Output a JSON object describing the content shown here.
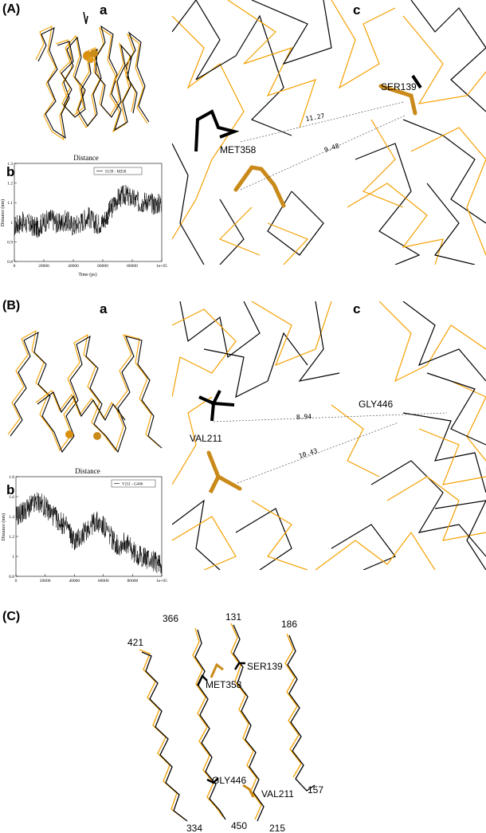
{
  "figure": {
    "panels": [
      {
        "label": "(A)",
        "sub_a": "a",
        "sub_b": "b",
        "sub_c": "c",
        "residue_left": "MET358",
        "residue_right": "SER139",
        "distance_1": "11.27",
        "distance_2": "9.48"
      },
      {
        "label": "(B)",
        "sub_a": "a",
        "sub_b": "b",
        "sub_c": "c",
        "residue_left": "VAL211",
        "residue_right": "GLY446",
        "distance_1": "8.94",
        "distance_2": "10.43"
      },
      {
        "label": "(C)",
        "residue_labels": [
          "366",
          "131",
          "186",
          "421",
          "SER139",
          "MET358",
          "GLY446",
          "VAL211",
          "157",
          "334",
          "450",
          "215"
        ]
      }
    ],
    "colors": {
      "orange": "#f5a000",
      "black": "#000000",
      "orange_dark": "#c98a1a"
    }
  },
  "chart_data": [
    {
      "type": "line",
      "title": "Distance",
      "xlabel": "Time (ps)",
      "ylabel": "Distance (nm)",
      "xlim": [
        0,
        100000
      ],
      "ylim": [
        0.8,
        1.3
      ],
      "x_ticks": [
        "0",
        "20000",
        "40000",
        "60000",
        "80000",
        "1e+05"
      ],
      "y_ticks": [
        "0.8",
        "0.9",
        "1",
        "1.1",
        "1.2",
        "1.3"
      ],
      "series": [
        {
          "name": "S139 - M358",
          "x": [
            0,
            5000,
            10000,
            15000,
            20000,
            25000,
            30000,
            35000,
            40000,
            45000,
            50000,
            55000,
            60000,
            65000,
            70000,
            75000,
            80000,
            85000,
            90000,
            95000,
            100000
          ],
          "values": [
            0.98,
            1.0,
            0.99,
            0.97,
            1.0,
            1.02,
            0.99,
            1.01,
            0.98,
            1.0,
            1.03,
            0.99,
            1.0,
            1.06,
            1.12,
            1.14,
            1.12,
            1.1,
            1.11,
            1.09,
            1.1
          ]
        }
      ]
    },
    {
      "type": "line",
      "title": "Distance",
      "xlabel": "",
      "ylabel": "Distance (nm)",
      "xlim": [
        0,
        100000
      ],
      "ylim": [
        0.8,
        1.8
      ],
      "x_ticks": [
        "0",
        "20000",
        "40000",
        "60000",
        "80000",
        "1e+05"
      ],
      "y_ticks": [
        "0.8",
        "1",
        "1.2",
        "1.4",
        "1.6",
        "1.8"
      ],
      "series": [
        {
          "name": "V211 - G446",
          "x": [
            0,
            5000,
            10000,
            15000,
            20000,
            25000,
            30000,
            35000,
            40000,
            45000,
            50000,
            55000,
            60000,
            65000,
            70000,
            75000,
            80000,
            85000,
            90000,
            95000,
            100000
          ],
          "values": [
            1.4,
            1.45,
            1.5,
            1.55,
            1.5,
            1.42,
            1.35,
            1.3,
            1.15,
            1.2,
            1.3,
            1.35,
            1.3,
            1.2,
            1.1,
            1.15,
            1.05,
            1.0,
            0.98,
            0.95,
            0.92
          ]
        }
      ]
    }
  ]
}
